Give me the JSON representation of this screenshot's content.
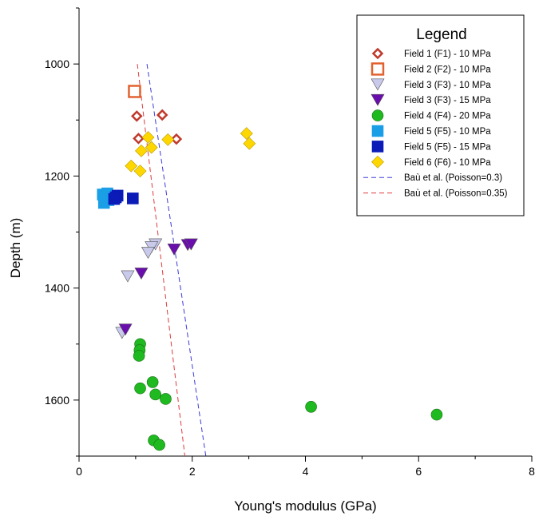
{
  "chart_data": {
    "type": "scatter",
    "xlabel": "Young's modulus (GPa)",
    "ylabel": "Depth (m)",
    "xlim": [
      0,
      8
    ],
    "ylim": [
      1700,
      900
    ],
    "y_inverted": true,
    "x_ticks": [
      0,
      2,
      4,
      6,
      8
    ],
    "y_ticks": [
      1000,
      1200,
      1400,
      1600
    ],
    "grid": false,
    "legend": {
      "title": "Legend",
      "placement": "top-right"
    },
    "series": [
      {
        "name": "Field 1 (F1) - 10 MPa",
        "marker": "diamond-open",
        "color": "#c0392b",
        "points": [
          [
            1.02,
            1093
          ],
          [
            1.47,
            1091
          ],
          [
            1.05,
            1133
          ],
          [
            1.72,
            1134
          ]
        ]
      },
      {
        "name": "Field 2 (F2) - 10 MPa",
        "marker": "square-open",
        "color": "#e2622f",
        "points": [
          [
            0.98,
            1049
          ]
        ]
      },
      {
        "name": "Field 3 (F3) - 10 MPa",
        "marker": "triangle-down",
        "color": "#c9c9ec",
        "points": [
          [
            1.35,
            1322
          ],
          [
            1.28,
            1327
          ],
          [
            1.22,
            1337
          ],
          [
            0.86,
            1379
          ],
          [
            0.76,
            1480
          ]
        ]
      },
      {
        "name": "Field 3 (F3) - 15 MPa",
        "marker": "triangle-down",
        "color": "#6a0dad",
        "points": [
          [
            1.92,
            1323
          ],
          [
            1.98,
            1322
          ],
          [
            1.68,
            1331
          ],
          [
            1.1,
            1374
          ],
          [
            0.82,
            1474
          ]
        ]
      },
      {
        "name": "Field 4 (F4) - 20 MPa",
        "marker": "circle",
        "color": "#1fba1f",
        "points": [
          [
            1.08,
            1500
          ],
          [
            1.07,
            1511
          ],
          [
            1.06,
            1521
          ],
          [
            1.3,
            1568
          ],
          [
            1.08,
            1579
          ],
          [
            1.35,
            1590
          ],
          [
            1.53,
            1598
          ],
          [
            1.32,
            1672
          ],
          [
            1.42,
            1680
          ],
          [
            4.1,
            1612
          ],
          [
            6.32,
            1626
          ]
        ]
      },
      {
        "name": "Field 5 (F5) - 10 MPa",
        "marker": "square",
        "color": "#1a9ee6",
        "points": [
          [
            0.42,
            1233
          ],
          [
            0.5,
            1231
          ],
          [
            0.45,
            1240
          ],
          [
            0.52,
            1243
          ],
          [
            0.44,
            1248
          ],
          [
            0.58,
            1241
          ]
        ]
      },
      {
        "name": "Field 5 (F5) - 15 MPa",
        "marker": "square",
        "color": "#0a1bb8",
        "points": [
          [
            0.68,
            1235
          ],
          [
            0.65,
            1238
          ],
          [
            0.62,
            1241
          ],
          [
            0.95,
            1240
          ]
        ]
      },
      {
        "name": "Field 6 (F6) - 10 MPa",
        "marker": "diamond",
        "color": "#ffd700",
        "points": [
          [
            1.22,
            1131
          ],
          [
            1.57,
            1135
          ],
          [
            2.96,
            1124
          ],
          [
            3.01,
            1142
          ],
          [
            1.28,
            1149
          ],
          [
            1.1,
            1155
          ],
          [
            0.92,
            1182
          ],
          [
            1.08,
            1191
          ]
        ]
      }
    ],
    "lines": [
      {
        "name": "Baù et al. (Poisson=0.3)",
        "style": "dashed",
        "color": "#3b3bd9",
        "points": [
          [
            1.2,
            1000
          ],
          [
            2.24,
            1700
          ]
        ]
      },
      {
        "name": "Baù et al. (Poisson=0.35)",
        "style": "dashed",
        "color": "#e03b3b",
        "points": [
          [
            1.03,
            1000
          ],
          [
            1.87,
            1700
          ]
        ]
      }
    ]
  }
}
